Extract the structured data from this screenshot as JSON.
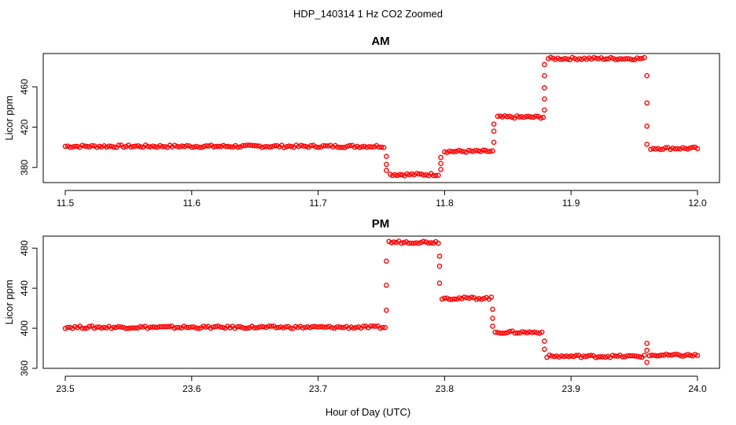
{
  "figure": {
    "title": "HDP_140314  1 Hz CO2 Zoomed",
    "xlabel": "Hour of Day (UTC)"
  },
  "colors": {
    "points": "#ff0000",
    "axis": "#000000",
    "background": "#ffffff"
  },
  "chart_data": [
    {
      "type": "scatter",
      "title": "AM",
      "ylabel": "Licor ppm",
      "xlim": [
        11.5,
        12.0
      ],
      "ylim": [
        365,
        493
      ],
      "xticks": [
        "11.5",
        "11.6",
        "11.7",
        "11.8",
        "11.9",
        "12.0"
      ],
      "yticks": [
        "380",
        "420",
        "460"
      ],
      "grid": false,
      "series": [
        {
          "marker": "open-circle",
          "segments": [
            {
              "x": [
                11.5,
                11.752
              ],
              "y": 401
            },
            {
              "x": [
                11.757,
                11.795
              ],
              "y": 373
            },
            {
              "x": [
                11.8,
                11.838
              ],
              "y": 396
            },
            {
              "x": [
                11.842,
                11.878
              ],
              "y": 430
            },
            {
              "x": [
                11.882,
                11.958
              ],
              "y": 488
            },
            {
              "x": [
                11.963,
                12.0
              ],
              "y": 399
            }
          ],
          "transitions": [
            {
              "x": 11.754,
              "y": [
                383,
                377,
                391
              ]
            },
            {
              "x": 11.797,
              "y": [
                378,
                384,
                390
              ]
            },
            {
              "x": 11.839,
              "y": [
                405,
                416,
                423
              ]
            },
            {
              "x": 11.879,
              "y": [
                437,
                448,
                459,
                471,
                482
              ]
            },
            {
              "x": 11.96,
              "y": [
                471,
                444,
                421,
                403
              ]
            }
          ]
        }
      ]
    },
    {
      "type": "scatter",
      "title": "PM",
      "ylabel": "Licor ppm",
      "xlim": [
        23.5,
        24.0
      ],
      "ylim": [
        360,
        492
      ],
      "xticks": [
        "23.5",
        "23.6",
        "23.7",
        "23.8",
        "23.9",
        "24.0"
      ],
      "yticks": [
        "360",
        "400",
        "440",
        "480"
      ],
      "grid": false,
      "series": [
        {
          "marker": "open-circle",
          "segments": [
            {
              "x": [
                23.5,
                23.753
              ],
              "y": 401
            },
            {
              "x": [
                23.756,
                23.795
              ],
              "y": 486
            },
            {
              "x": [
                23.798,
                23.837
              ],
              "y": 430
            },
            {
              "x": [
                23.84,
                23.877
              ],
              "y": 396
            },
            {
              "x": [
                23.881,
                23.958
              ],
              "y": 372
            },
            {
              "x": [
                23.962,
                24.0
              ],
              "y": 373
            }
          ],
          "transitions": [
            {
              "x": 23.754,
              "y": [
                418,
                443,
                467
              ]
            },
            {
              "x": 23.796,
              "y": [
                472,
                462,
                445
              ]
            },
            {
              "x": 23.838,
              "y": [
                419,
                410,
                402
              ]
            },
            {
              "x": 23.879,
              "y": [
                387,
                379
              ]
            },
            {
              "x": 23.96,
              "y": [
                385,
                366,
                378
              ]
            }
          ]
        }
      ]
    }
  ]
}
